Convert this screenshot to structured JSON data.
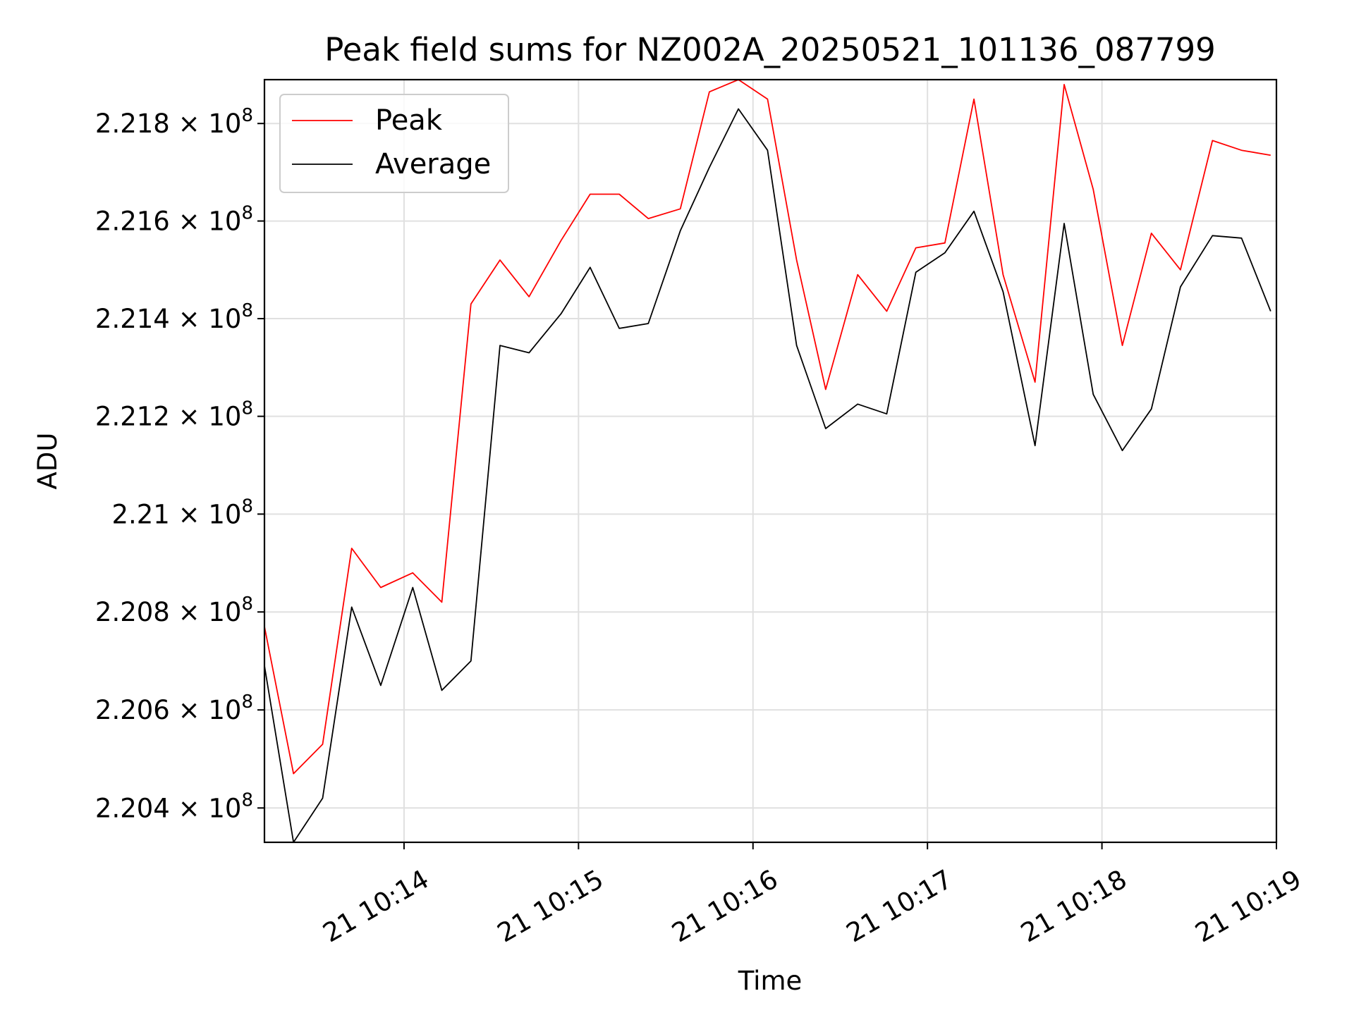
{
  "chart_data": {
    "type": "line",
    "title": "Peak field sums for NZ002A_20250521_101136_087799",
    "xlabel": "Time",
    "ylabel": "ADU",
    "x_ticks": [
      "21 10:14",
      "21 10:15",
      "21 10:16",
      "21 10:17",
      "21 10:18",
      "21 10:19"
    ],
    "y_ticks": [
      {
        "value": 220400000,
        "mantissa": "2.204",
        "base": "10",
        "exp": "8"
      },
      {
        "value": 220600000,
        "mantissa": "2.206",
        "base": "10",
        "exp": "8"
      },
      {
        "value": 220800000,
        "mantissa": "2.208",
        "base": "10",
        "exp": "8"
      },
      {
        "value": 221000000,
        "mantissa": "2.21",
        "base": "10",
        "exp": "8"
      },
      {
        "value": 221200000,
        "mantissa": "2.212",
        "base": "10",
        "exp": "8"
      },
      {
        "value": 221400000,
        "mantissa": "2.214",
        "base": "10",
        "exp": "8"
      },
      {
        "value": 221600000,
        "mantissa": "2.216",
        "base": "10",
        "exp": "8"
      },
      {
        "value": 221800000,
        "mantissa": "2.218",
        "base": "10",
        "exp": "8"
      }
    ],
    "y_scale": "log",
    "ylim": [
      220330000,
      221890000
    ],
    "xlim": [
      "2025-05-21T10:13:12",
      "2025-05-21T10:19:00"
    ],
    "grid": true,
    "legend_position": "top-left",
    "x": [
      "2025-05-21T10:13:12",
      "2025-05-21T10:13:22",
      "2025-05-21T10:13:32",
      "2025-05-21T10:13:42",
      "2025-05-21T10:13:52",
      "2025-05-21T10:14:03",
      "2025-05-21T10:14:13",
      "2025-05-21T10:14:23",
      "2025-05-21T10:14:33",
      "2025-05-21T10:14:43",
      "2025-05-21T10:14:54",
      "2025-05-21T10:15:04",
      "2025-05-21T10:15:14",
      "2025-05-21T10:15:24",
      "2025-05-21T10:15:35",
      "2025-05-21T10:15:45",
      "2025-05-21T10:15:55",
      "2025-05-21T10:16:05",
      "2025-05-21T10:16:15",
      "2025-05-21T10:16:25",
      "2025-05-21T10:16:36",
      "2025-05-21T10:16:46",
      "2025-05-21T10:16:56",
      "2025-05-21T10:17:06",
      "2025-05-21T10:17:16",
      "2025-05-21T10:17:26",
      "2025-05-21T10:17:37",
      "2025-05-21T10:17:47",
      "2025-05-21T10:17:57",
      "2025-05-21T10:18:07",
      "2025-05-21T10:18:17",
      "2025-05-21T10:18:27",
      "2025-05-21T10:18:38",
      "2025-05-21T10:18:48",
      "2025-05-21T10:18:58"
    ],
    "series": [
      {
        "name": "Peak",
        "color": "#ff0000",
        "values": [
          220770000,
          220470000,
          220530000,
          220930000,
          220850000,
          220880000,
          220820000,
          221430000,
          221520000,
          221445000,
          221560000,
          221655000,
          221655000,
          221605000,
          221625000,
          221865000,
          221890000,
          221850000,
          221520000,
          221255000,
          221490000,
          221415000,
          221545000,
          221555000,
          221850000,
          221490000,
          221270000,
          221880000,
          221665000,
          221345000,
          221575000,
          221500000,
          221765000,
          221745000,
          221735000
        ]
      },
      {
        "name": "Average",
        "color": "#000000",
        "values": [
          220690000,
          220330000,
          220420000,
          220810000,
          220650000,
          220850000,
          220640000,
          220700000,
          221345000,
          221330000,
          221410000,
          221505000,
          221380000,
          221390000,
          221580000,
          221710000,
          221830000,
          221745000,
          221345000,
          221175000,
          221225000,
          221205000,
          221495000,
          221535000,
          221620000,
          221455000,
          221140000,
          221595000,
          221245000,
          221130000,
          221215000,
          221465000,
          221570000,
          221565000,
          221415000
        ]
      }
    ]
  }
}
